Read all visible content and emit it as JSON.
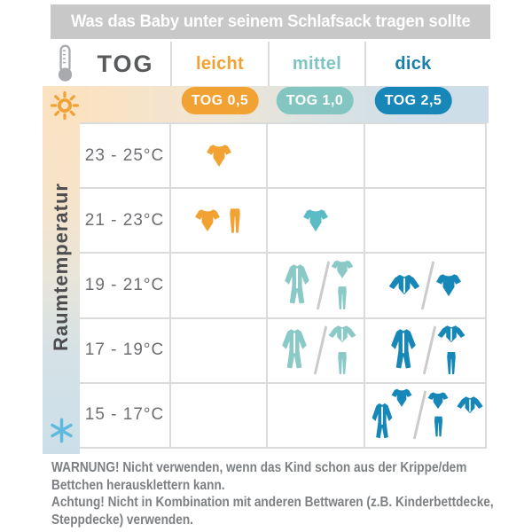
{
  "title": "Was das Baby unter seinem Schlafsack tragen sollte",
  "tog_header": {
    "label": "TOG",
    "thermometer_icon": "thermometer-icon",
    "categories": [
      {
        "id": "leicht",
        "label": "leicht",
        "badge": "TOG 0,5",
        "color": "#F2A233",
        "badge_color": "#F2A233",
        "icon_color": "#F2A233"
      },
      {
        "id": "mittel",
        "label": "mittel",
        "badge": "TOG 1,0",
        "color": "#7FC4C0",
        "badge_color": "#83C5C1",
        "icon_color": "#8BC9C6",
        "icon_color_strong": "#5CBCC5"
      },
      {
        "id": "dick",
        "label": "dick",
        "badge": "TOG 2,5",
        "color": "#1A7FA8",
        "badge_color": "#1787B8",
        "icon_color": "#1787B8"
      }
    ]
  },
  "temperature_axis": {
    "label": "Raumtemperatur",
    "warm_icon": "sun-icon",
    "cold_icon": "snowflake-icon",
    "sun_color": "#F2A233",
    "snowflake_color": "#5FB9DF",
    "gradient_warm": "#FBE2C0",
    "gradient_cold": "#CCDFE9"
  },
  "rows": [
    {
      "temp": "23 - 25°C",
      "cells": [
        {
          "color": "#F2A233",
          "items": [
            "bodysuit-short"
          ]
        },
        {
          "color": "#5CBCC5",
          "items": []
        },
        {
          "color": "#1787B8",
          "items": []
        }
      ]
    },
    {
      "temp": "21 - 23°C",
      "cells": [
        {
          "color": "#F2A233",
          "items": [
            "bodysuit-short",
            "pants"
          ]
        },
        {
          "color": "#5CBCC5",
          "items": [
            "bodysuit-short"
          ]
        },
        {
          "color": "#1787B8",
          "items": []
        }
      ]
    },
    {
      "temp": "19 - 21°C",
      "cells": [
        {
          "color": "#F2A233",
          "items": []
        },
        {
          "color": "#8BC9C6",
          "items": [
            "sleepsuit",
            "slash",
            "stack:bodysuit-short+pants"
          ]
        },
        {
          "color": "#1787B8",
          "items": [
            "bodysuit-long",
            "slash",
            "bodysuit-short"
          ]
        }
      ]
    },
    {
      "temp": "17 - 19°C",
      "cells": [
        {
          "color": "#F2A233",
          "items": []
        },
        {
          "color": "#8BC9C6",
          "items": [
            "sleepsuit",
            "slash",
            "stack:bodysuit-long+pants"
          ]
        },
        {
          "color": "#1787B8",
          "items": [
            "sleepsuit",
            "slash",
            "stack:bodysuit-long+pants"
          ]
        }
      ]
    },
    {
      "temp": "15 - 17°C",
      "cells": [
        {
          "color": "#F2A233",
          "items": []
        },
        {
          "color": "#8BC9C6",
          "items": []
        },
        {
          "color": "#1787B8",
          "items": [
            "group:sleepsuit+bodysuit-short",
            "slash",
            "group:stack-bodysuit-short-pants+bodysuit-long"
          ]
        }
      ]
    }
  ],
  "warning": {
    "lines": [
      "WARNUNG! Nicht verwenden, wenn das Kind schon aus der Krippe/dem",
      "Bettchen herausklettern kann.",
      "Achtung! Nicht in Kombination mit anderen Bettwaren (z.B. Kinderbettdecke,",
      "Steppdecke) verwenden."
    ]
  },
  "colors": {
    "title_bar_bg": "#C8C8C8",
    "title_text": "#FFFFFF",
    "tog_text": "#58595B",
    "temp_text": "#6D6E71",
    "axis_text": "#4D4D4F",
    "warning_text": "#7D8083",
    "grid_line": "#DADBDC",
    "thermometer": "#A8AAAD"
  },
  "chart_data": {
    "type": "table",
    "title": "Was das Baby unter seinem Schlafsack tragen sollte",
    "x_categories": [
      "leicht — TOG 0,5",
      "mittel — TOG 1,0",
      "dick — TOG 2,5"
    ],
    "y_axis_label": "Raumtemperatur",
    "y_categories": [
      "23 - 25°C",
      "21 - 23°C",
      "19 - 21°C",
      "17 - 19°C",
      "15 - 17°C"
    ],
    "cells": [
      [
        "bodysuit-short",
        "",
        ""
      ],
      [
        "bodysuit-short + pants",
        "bodysuit-short",
        ""
      ],
      [
        "",
        "sleepsuit / bodysuit-short + pants",
        "bodysuit-long / bodysuit-short"
      ],
      [
        "",
        "sleepsuit / bodysuit-long + pants",
        "sleepsuit / bodysuit-long + pants"
      ],
      [
        "",
        "",
        "sleepsuit + bodysuit-short / bodysuit-short + pants + bodysuit-long"
      ]
    ]
  }
}
